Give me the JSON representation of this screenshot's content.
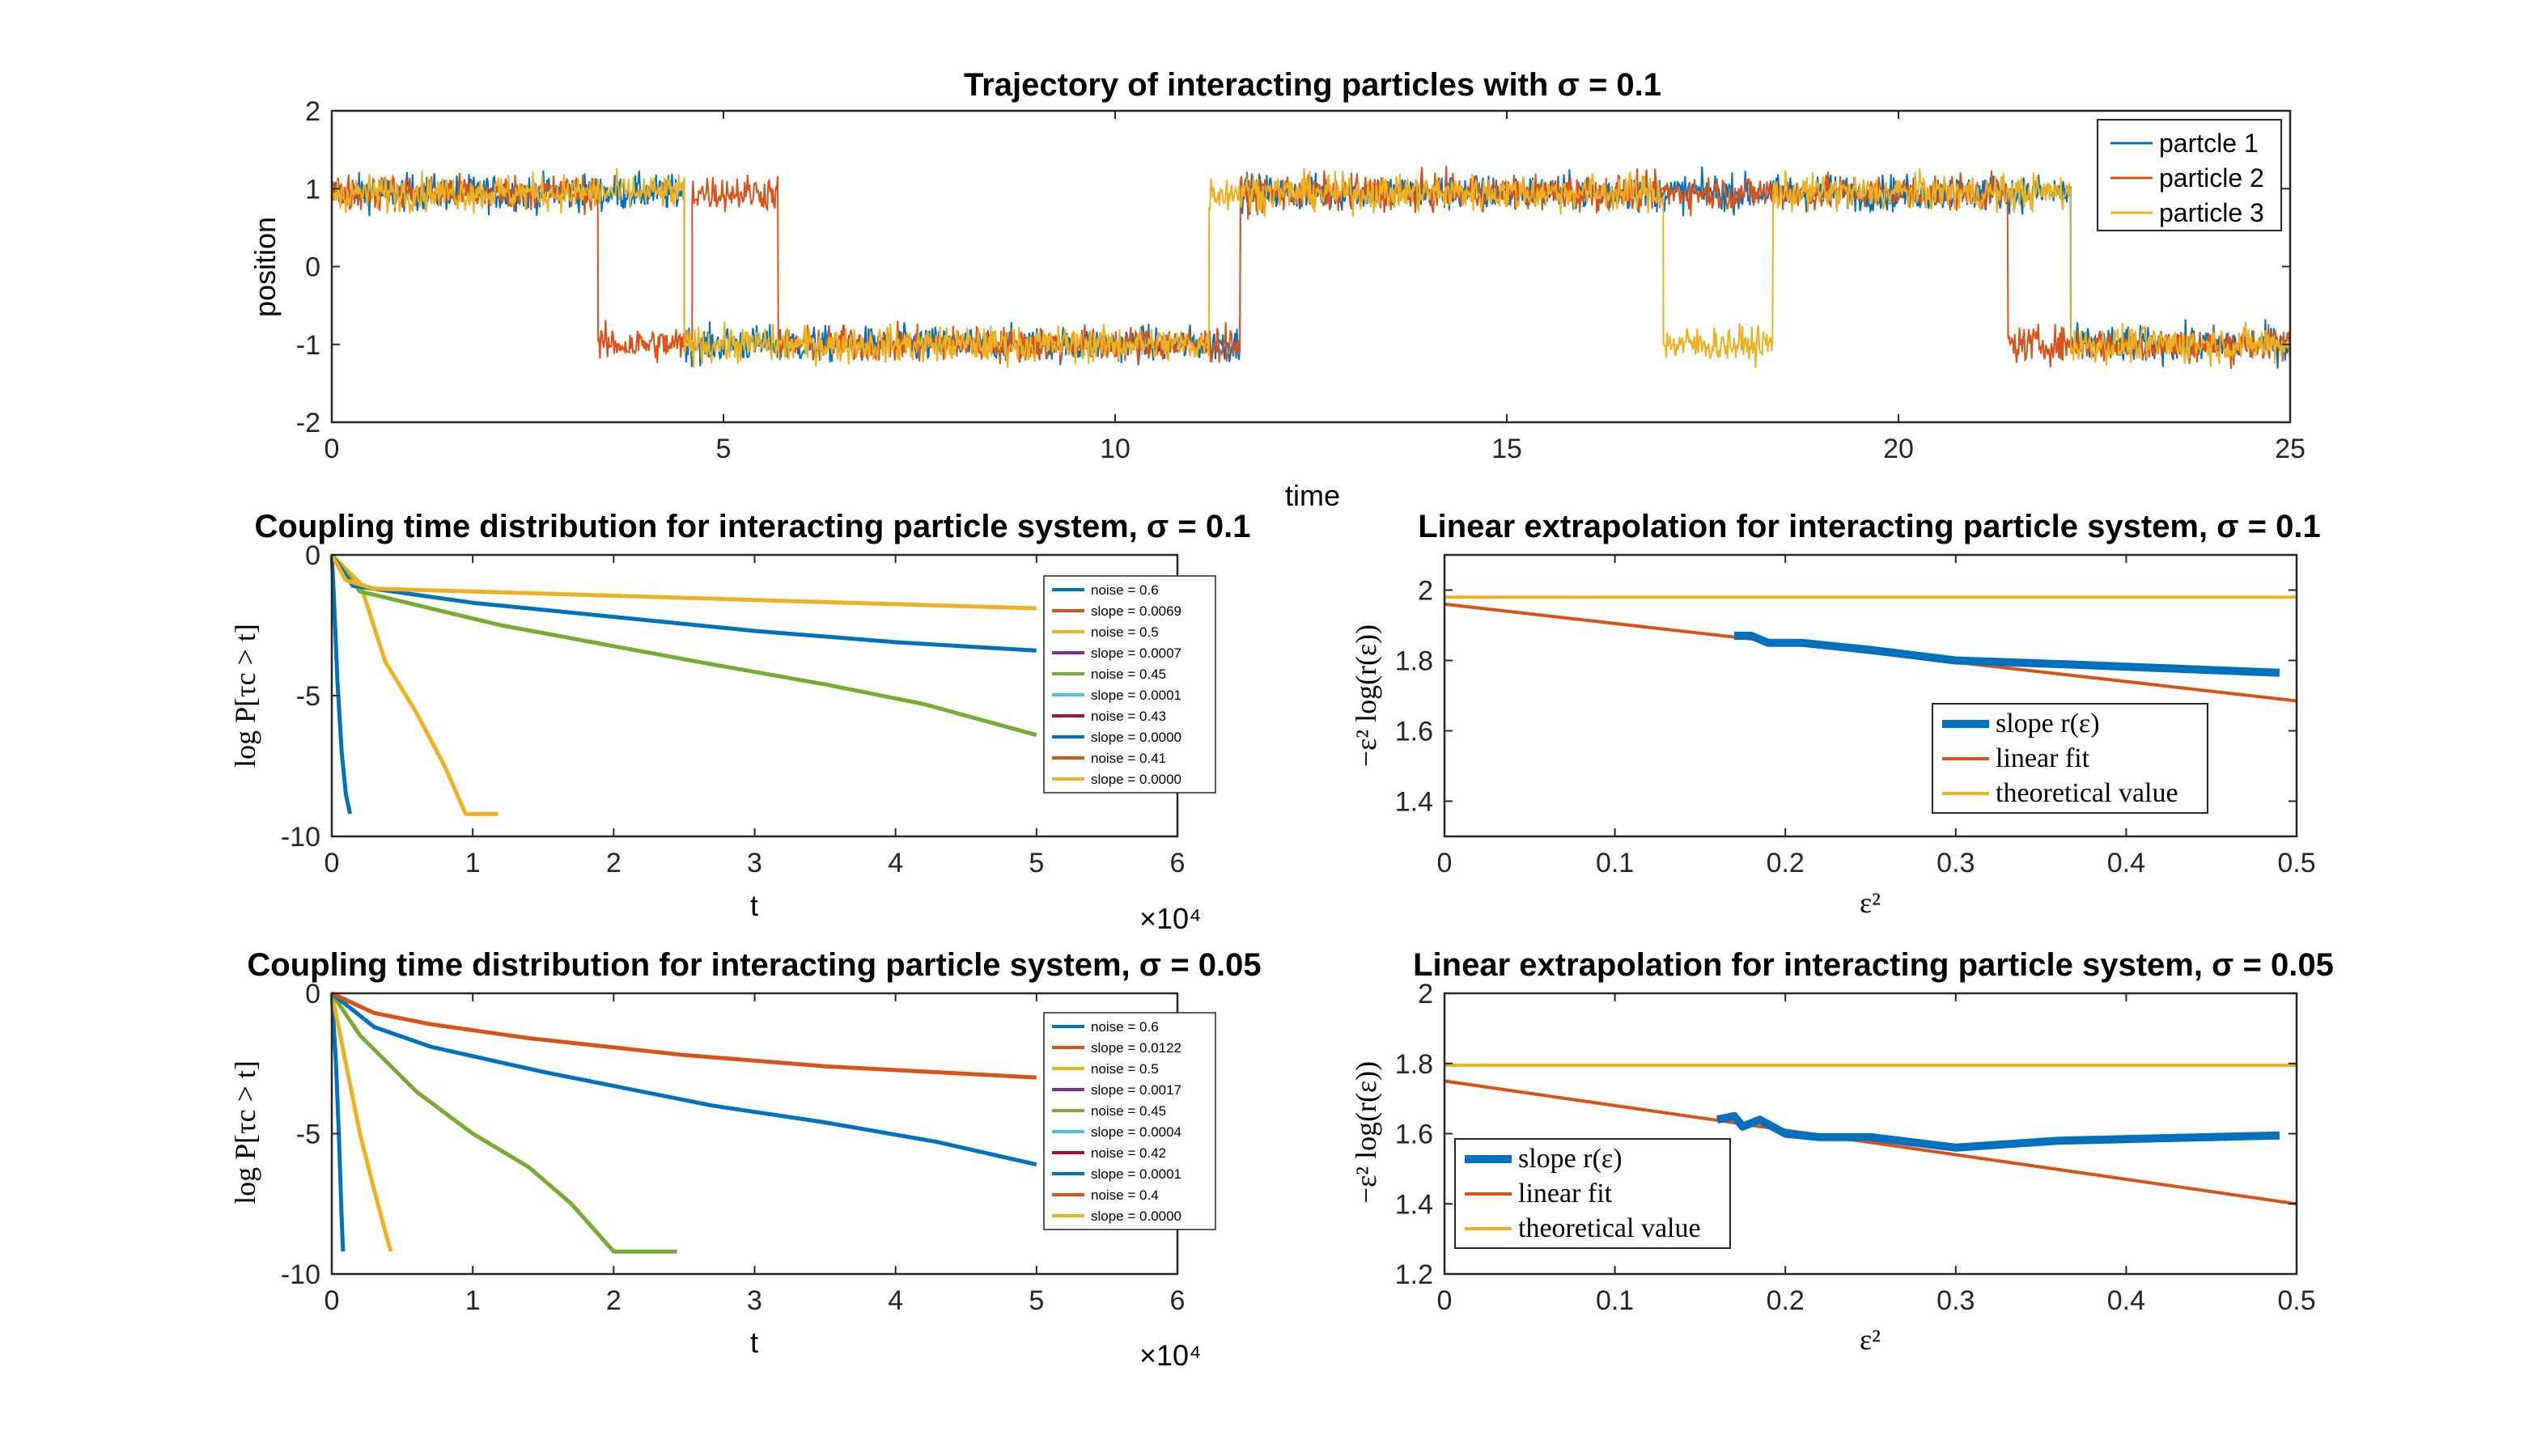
{
  "colors": [
    "#0072BD",
    "#D95319",
    "#EDB120",
    "#7E2F8E",
    "#77AC30",
    "#4DBEEE",
    "#A2142F"
  ],
  "chart_data": [
    {
      "id": "trajectory",
      "type": "line",
      "title": "Trajectory of interacting particles with σ = 0.1",
      "xlabel": "time",
      "ylabel": "position",
      "xlim": [
        0,
        25
      ],
      "ylim": [
        -2,
        2
      ],
      "xticks": [
        "0",
        "5",
        "10",
        "15",
        "20",
        "25"
      ],
      "yticks": [
        "-2",
        "-1",
        "0",
        "1",
        "2"
      ],
      "legend": [
        "partcle 1",
        "particle 2",
        "particle 3"
      ],
      "legend_position": "top-right",
      "series": [
        {
          "name": "partcle 1",
          "color": "#0072BD",
          "segments": [
            [
              0,
              4.5,
              0.95
            ],
            [
              4.5,
              11.6,
              -1.0
            ],
            [
              11.6,
              22.2,
              0.95
            ],
            [
              22.2,
              25,
              -1.0
            ]
          ]
        },
        {
          "name": "particle 2",
          "color": "#D95319",
          "segments": [
            [
              0,
              3.4,
              0.95
            ],
            [
              3.4,
              4.6,
              -1.0
            ],
            [
              4.6,
              5.7,
              0.95
            ],
            [
              5.7,
              11.6,
              -1.0
            ],
            [
              11.6,
              21.4,
              0.95
            ],
            [
              21.4,
              25,
              -1.0
            ]
          ]
        },
        {
          "name": "particle 3",
          "color": "#EDB120",
          "segments": [
            [
              0,
              4.5,
              0.95
            ],
            [
              4.5,
              11.2,
              -1.0
            ],
            [
              11.2,
              17.0,
              0.95
            ],
            [
              17.0,
              18.4,
              -1.0
            ],
            [
              18.4,
              22.2,
              0.95
            ],
            [
              22.2,
              25,
              -1.0
            ]
          ]
        }
      ]
    },
    {
      "id": "coupling1",
      "type": "line",
      "title": "Coupling time distribution for interacting particle system, σ = 0.1",
      "xlabel": "t",
      "ylabel": "log P[τc > t]",
      "xlim": [
        0,
        60000
      ],
      "ylim": [
        -10,
        0
      ],
      "xticks": [
        "0",
        "1",
        "2",
        "3",
        "4",
        "5",
        "6"
      ],
      "yticks": [
        "-10",
        "-5",
        "0"
      ],
      "x_multiplier": "×10⁴",
      "legend": [
        "noise = 0.6",
        "slope = 0.0069",
        "noise = 0.5",
        "slope = 0.0007",
        "noise = 0.45",
        "slope = 0.0001",
        "noise = 0.43",
        "slope = 0.0000",
        "noise = 0.41",
        "slope = 0.0000"
      ],
      "legend_colors": [
        "#0072BD",
        "#D95319",
        "#EDB120",
        "#7E2F8E",
        "#77AC30",
        "#4DBEEE",
        "#A2142F",
        "#0072BD",
        "#D95319",
        "#EDB120"
      ],
      "series": [
        {
          "name": "noise = 0.6",
          "color": "#0072BD",
          "x": [
            0,
            150,
            400,
            700,
            1000,
            1300
          ],
          "y": [
            0,
            -1.5,
            -4.5,
            -7.0,
            -8.5,
            -9.2
          ]
        },
        {
          "name": "noise = 0.5",
          "color": "#EDB120",
          "x": [
            0,
            2000,
            3800,
            6000,
            8000,
            9500,
            11800
          ],
          "y": [
            0,
            -1.0,
            -3.8,
            -5.6,
            -7.5,
            -9.2,
            -9.2
          ]
        },
        {
          "name": "noise = 0.45",
          "color": "#77AC30",
          "x": [
            0,
            2000,
            12000,
            26000,
            35000,
            42000,
            50000
          ],
          "y": [
            0,
            -1.3,
            -2.5,
            -3.8,
            -4.6,
            -5.3,
            -6.4
          ]
        },
        {
          "name": "noise = 0.43",
          "color": "#0072BD",
          "x": [
            0,
            1500,
            10000,
            20000,
            30000,
            40000,
            50000
          ],
          "y": [
            0,
            -1.1,
            -1.7,
            -2.2,
            -2.7,
            -3.1,
            -3.4
          ]
        },
        {
          "name": "noise = 0.41",
          "color": "#EDB120",
          "x": [
            0,
            1000,
            3000,
            10000,
            20000,
            30000,
            40000,
            50000
          ],
          "y": [
            0,
            -0.9,
            -1.2,
            -1.3,
            -1.45,
            -1.6,
            -1.75,
            -1.9
          ]
        }
      ]
    },
    {
      "id": "linear1",
      "type": "line",
      "title": "Linear extrapolation for interacting particle system, σ = 0.1",
      "xlabel": "ε²",
      "ylabel": "−ε² log(r(ε))",
      "xlim": [
        0,
        0.5
      ],
      "ylim": [
        1.3,
        2.1
      ],
      "xticks": [
        "0",
        "0.1",
        "0.2",
        "0.3",
        "0.4",
        "0.5"
      ],
      "yticks": [
        "1.4",
        "1.6",
        "1.8",
        "2"
      ],
      "legend": [
        "slope r(ε)",
        "linear fit",
        "theoretical value"
      ],
      "legend_position": "bottom-right",
      "series": [
        {
          "name": "slope r(ε)",
          "color": "#0072BD",
          "x": [
            0.17,
            0.18,
            0.19,
            0.2,
            0.21,
            0.25,
            0.3,
            0.36,
            0.49
          ],
          "y": [
            1.87,
            1.87,
            1.85,
            1.85,
            1.85,
            1.83,
            1.8,
            1.79,
            1.765
          ]
        },
        {
          "name": "linear fit",
          "color": "#D95319",
          "x": [
            0,
            0.5
          ],
          "y": [
            1.96,
            1.685
          ]
        },
        {
          "name": "theoretical value",
          "color": "#EDB120",
          "x": [
            0,
            0.5
          ],
          "y": [
            1.98,
            1.98
          ]
        }
      ]
    },
    {
      "id": "coupling2",
      "type": "line",
      "title": "Coupling time distribution for interacting particle system, σ = 0.05",
      "xlabel": "t",
      "ylabel": "log P[τc > t]",
      "xlim": [
        0,
        60000
      ],
      "ylim": [
        -10,
        0
      ],
      "xticks": [
        "0",
        "1",
        "2",
        "3",
        "4",
        "5",
        "6"
      ],
      "yticks": [
        "-10",
        "-5",
        "0"
      ],
      "x_multiplier": "×10⁴",
      "legend": [
        "noise = 0.6",
        "slope = 0.0122",
        "noise = 0.5",
        "slope = 0.0017",
        "noise = 0.45",
        "slope = 0.0004",
        "noise = 0.42",
        "slope = 0.0001",
        "noise = 0.4",
        "slope = 0.0000"
      ],
      "legend_colors": [
        "#0072BD",
        "#D95319",
        "#EDB120",
        "#7E2F8E",
        "#77AC30",
        "#4DBEEE",
        "#A2142F",
        "#0072BD",
        "#D95319",
        "#EDB120"
      ],
      "series": [
        {
          "name": "noise = 0.6",
          "color": "#0072BD",
          "x": [
            0,
            300,
            500,
            700,
            800
          ],
          "y": [
            0,
            -2.5,
            -5.0,
            -8.0,
            -9.2
          ]
        },
        {
          "name": "noise = 0.5",
          "color": "#EDB120",
          "x": [
            0,
            1000,
            2000,
            3000,
            3800,
            4200
          ],
          "y": [
            0,
            -2.5,
            -5.0,
            -7.0,
            -8.5,
            -9.2
          ]
        },
        {
          "name": "noise = 0.45",
          "color": "#77AC30",
          "x": [
            0,
            2000,
            6000,
            10000,
            14000,
            17000,
            20000,
            24500
          ],
          "y": [
            0,
            -1.5,
            -3.5,
            -5.0,
            -6.2,
            -7.5,
            -9.2,
            -9.2
          ]
        },
        {
          "name": "noise = 0.42",
          "color": "#0072BD",
          "x": [
            0,
            3000,
            7000,
            15000,
            27000,
            35000,
            43000,
            50000
          ],
          "y": [
            0,
            -1.2,
            -1.9,
            -2.8,
            -4.0,
            -4.6,
            -5.3,
            -6.1
          ]
        },
        {
          "name": "noise = 0.4",
          "color": "#D95319",
          "x": [
            0,
            3000,
            7000,
            14000,
            25000,
            35000,
            50000
          ],
          "y": [
            0,
            -0.7,
            -1.1,
            -1.6,
            -2.2,
            -2.6,
            -3.0
          ]
        }
      ]
    },
    {
      "id": "linear2",
      "type": "line",
      "title": "Linear extrapolation for interacting particle system, σ = 0.05",
      "xlabel": "ε²",
      "ylabel": "−ε² log(r(ε))",
      "xlim": [
        0,
        0.5
      ],
      "ylim": [
        1.2,
        2
      ],
      "xticks": [
        "0",
        "0.1",
        "0.2",
        "0.3",
        "0.4",
        "0.5"
      ],
      "yticks": [
        "1.2",
        "1.4",
        "1.6",
        "1.8",
        "2"
      ],
      "legend": [
        "slope r(ε)",
        "linear fit",
        "theoretical value"
      ],
      "legend_position": "bottom-left",
      "series": [
        {
          "name": "slope r(ε)",
          "color": "#0072BD",
          "x": [
            0.16,
            0.17,
            0.175,
            0.18,
            0.185,
            0.2,
            0.22,
            0.25,
            0.3,
            0.36,
            0.49
          ],
          "y": [
            1.64,
            1.65,
            1.62,
            1.63,
            1.64,
            1.6,
            1.59,
            1.59,
            1.56,
            1.58,
            1.595
          ]
        },
        {
          "name": "linear fit",
          "color": "#D95319",
          "x": [
            0,
            0.5
          ],
          "y": [
            1.75,
            1.4
          ]
        },
        {
          "name": "theoretical value",
          "color": "#EDB120",
          "x": [
            0,
            0.5
          ],
          "y": [
            1.795,
            1.795
          ]
        }
      ]
    }
  ]
}
